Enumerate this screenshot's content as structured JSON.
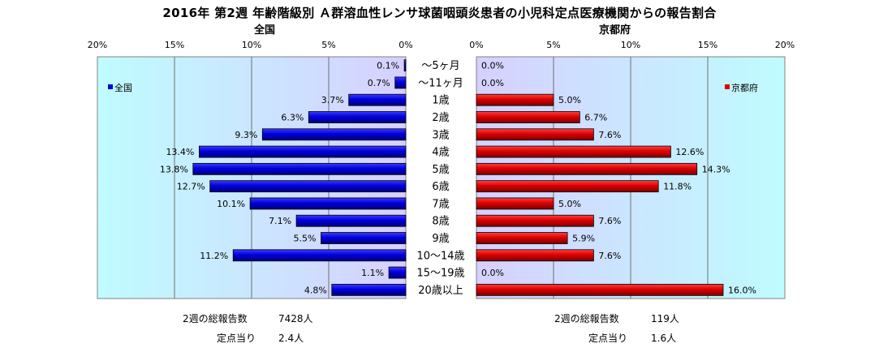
{
  "title": "2016年 第2週 年齢階級別 Ａ群溶血性レンサ球菌咽頭炎患者の小児科定点医療機関からの報告割合",
  "chart_data": [
    {
      "type": "bar",
      "orientation": "horizontal",
      "direction": "right-to-left",
      "title": "全国",
      "legend": "全国",
      "legend_position": "top-left",
      "xlim": [
        0,
        20
      ],
      "x_ticks": [
        "20%",
        "15%",
        "10%",
        "5%",
        "0%"
      ],
      "categories": [
        "～5ヶ月",
        "～11ヶ月",
        "1歳",
        "2歳",
        "3歳",
        "4歳",
        "5歳",
        "6歳",
        "7歳",
        "8歳",
        "9歳",
        "10～14歳",
        "15～19歳",
        "20歳以上"
      ],
      "values": [
        0.1,
        0.7,
        3.7,
        6.3,
        9.3,
        13.4,
        13.8,
        12.7,
        10.1,
        7.1,
        5.5,
        11.2,
        1.1,
        4.8
      ],
      "value_labels": [
        "0.1%",
        "0.7%",
        "3.7%",
        "6.3%",
        "9.3%",
        "13.4%",
        "13.8%",
        "12.7%",
        "10.1%",
        "7.1%",
        "5.5%",
        "11.2%",
        "1.1%",
        "4.8%"
      ],
      "bar_color": "#0000dd",
      "grid": true
    },
    {
      "type": "bar",
      "orientation": "horizontal",
      "direction": "left-to-right",
      "title": "京都府",
      "legend": "京都府",
      "legend_position": "top-right",
      "xlim": [
        0,
        20
      ],
      "x_ticks": [
        "0%",
        "5%",
        "10%",
        "15%",
        "20%"
      ],
      "categories": [
        "～5ヶ月",
        "～11ヶ月",
        "1歳",
        "2歳",
        "3歳",
        "4歳",
        "5歳",
        "6歳",
        "7歳",
        "8歳",
        "9歳",
        "10～14歳",
        "15～19歳",
        "20歳以上"
      ],
      "values": [
        0.0,
        0.0,
        5.0,
        6.7,
        7.6,
        12.6,
        14.3,
        11.8,
        5.0,
        7.6,
        5.9,
        7.6,
        0.0,
        16.0
      ],
      "value_labels": [
        "0.0%",
        "0.0%",
        "5.0%",
        "6.7%",
        "7.6%",
        "12.6%",
        "14.3%",
        "11.8%",
        "5.0%",
        "7.6%",
        "5.9%",
        "7.6%",
        "0.0%",
        "16.0%"
      ],
      "bar_color": "#dd0000",
      "grid": true
    }
  ],
  "stats": {
    "national_total_label": "2週の総報告数",
    "national_total_value": "7428人",
    "national_per_label": "定点当り",
    "national_per_value": "2.4人",
    "kyoto_total_label": "2週の総報告数",
    "kyoto_total_value": "119人",
    "kyoto_per_label": "定点当り",
    "kyoto_per_value": "1.6人"
  }
}
